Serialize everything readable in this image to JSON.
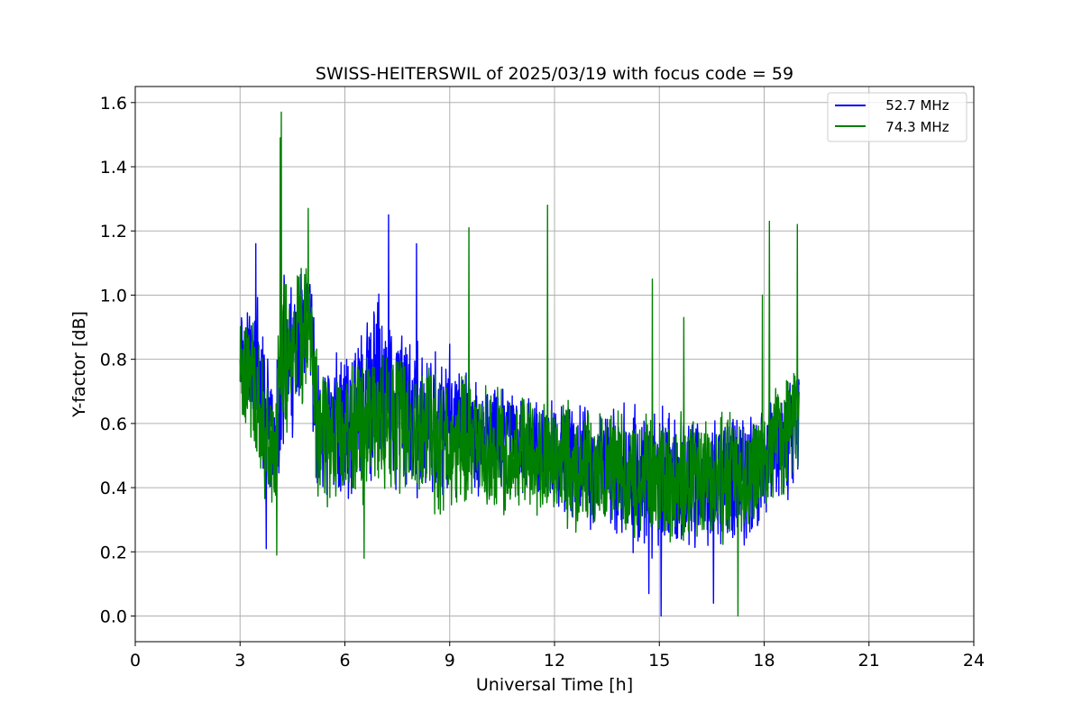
{
  "chart_data": {
    "type": "line",
    "title": "SWISS-HEITERSWIL of 2025/03/19 with focus code = 59",
    "xlabel": "Universal Time [h]",
    "ylabel": "Y-factor [dB]",
    "xlim": [
      0,
      24
    ],
    "ylim": [
      -0.08,
      1.65
    ],
    "xticks": [
      "0",
      "3",
      "6",
      "9",
      "12",
      "15",
      "18",
      "21",
      "24"
    ],
    "yticks": [
      "0.0",
      "0.2",
      "0.4",
      "0.6",
      "0.8",
      "1.0",
      "1.2",
      "1.4",
      "1.6"
    ],
    "grid": true,
    "legend_position": "top-right",
    "x": [
      3.0,
      3.25,
      3.5,
      3.75,
      4.0,
      4.2,
      4.5,
      4.75,
      5.0,
      5.25,
      5.5,
      6.0,
      6.5,
      7.0,
      7.5,
      8.0,
      8.5,
      9.0,
      9.5,
      10.0,
      10.5,
      11.0,
      11.5,
      12.0,
      12.5,
      13.0,
      13.5,
      14.0,
      14.5,
      15.0,
      15.5,
      16.0,
      16.5,
      17.0,
      17.5,
      18.0,
      18.5,
      19.0
    ],
    "series": [
      {
        "name": "   52.7 MHz",
        "color": "#0000ff",
        "values": [
          0.85,
          0.8,
          0.75,
          0.6,
          0.5,
          0.8,
          0.78,
          0.85,
          0.9,
          0.55,
          0.6,
          0.6,
          0.65,
          0.7,
          0.65,
          0.6,
          0.58,
          0.6,
          0.58,
          0.55,
          0.55,
          0.53,
          0.52,
          0.5,
          0.48,
          0.47,
          0.45,
          0.44,
          0.42,
          0.42,
          0.42,
          0.42,
          0.42,
          0.42,
          0.42,
          0.5,
          0.55,
          0.6
        ],
        "amplitude": [
          0.2,
          0.2,
          0.25,
          0.25,
          0.2,
          0.3,
          0.25,
          0.25,
          0.2,
          0.25,
          0.25,
          0.25,
          0.3,
          0.35,
          0.3,
          0.27,
          0.25,
          0.25,
          0.22,
          0.22,
          0.2,
          0.2,
          0.2,
          0.2,
          0.2,
          0.22,
          0.22,
          0.25,
          0.25,
          0.25,
          0.25,
          0.22,
          0.22,
          0.25,
          0.22,
          0.22,
          0.22,
          0.2
        ]
      },
      {
        "name": "   74.3 MHz",
        "color": "#008000",
        "values": [
          0.8,
          0.75,
          0.7,
          0.55,
          0.5,
          0.85,
          0.8,
          0.85,
          0.9,
          0.55,
          0.58,
          0.58,
          0.6,
          0.6,
          0.6,
          0.58,
          0.55,
          0.55,
          0.55,
          0.52,
          0.52,
          0.5,
          0.5,
          0.48,
          0.47,
          0.45,
          0.44,
          0.44,
          0.43,
          0.43,
          0.43,
          0.43,
          0.43,
          0.43,
          0.43,
          0.5,
          0.55,
          0.6
        ],
        "amplitude": [
          0.2,
          0.2,
          0.25,
          0.25,
          0.2,
          0.35,
          0.25,
          0.25,
          0.2,
          0.25,
          0.25,
          0.25,
          0.27,
          0.27,
          0.27,
          0.25,
          0.25,
          0.25,
          0.22,
          0.22,
          0.22,
          0.2,
          0.2,
          0.22,
          0.22,
          0.22,
          0.22,
          0.22,
          0.22,
          0.22,
          0.22,
          0.22,
          0.22,
          0.22,
          0.22,
          0.22,
          0.22,
          0.22
        ]
      }
    ],
    "peaks": [
      {
        "series": 1,
        "x": 4.18,
        "y": 1.57
      },
      {
        "series": 1,
        "x": 4.15,
        "y": 1.49
      },
      {
        "series": 1,
        "x": 4.95,
        "y": 1.27
      },
      {
        "series": 0,
        "x": 7.25,
        "y": 1.25
      },
      {
        "series": 0,
        "x": 8.05,
        "y": 1.16
      },
      {
        "series": 1,
        "x": 9.55,
        "y": 1.21
      },
      {
        "series": 1,
        "x": 11.8,
        "y": 1.28
      },
      {
        "series": 1,
        "x": 18.15,
        "y": 1.23
      },
      {
        "series": 1,
        "x": 18.95,
        "y": 1.22
      },
      {
        "series": 0,
        "x": 3.45,
        "y": 1.16
      },
      {
        "series": 1,
        "x": 14.8,
        "y": 1.05
      },
      {
        "series": 1,
        "x": 17.95,
        "y": 1.0
      },
      {
        "series": 1,
        "x": 15.7,
        "y": 0.93
      }
    ],
    "troughs": [
      {
        "series": 0,
        "x": 15.05,
        "y": 0.0
      },
      {
        "series": 1,
        "x": 17.25,
        "y": 0.0
      },
      {
        "series": 0,
        "x": 16.55,
        "y": 0.04
      },
      {
        "series": 0,
        "x": 14.7,
        "y": 0.07
      },
      {
        "series": 1,
        "x": 6.55,
        "y": 0.18
      },
      {
        "series": 1,
        "x": 4.05,
        "y": 0.19
      },
      {
        "series": 0,
        "x": 3.75,
        "y": 0.21
      }
    ]
  }
}
